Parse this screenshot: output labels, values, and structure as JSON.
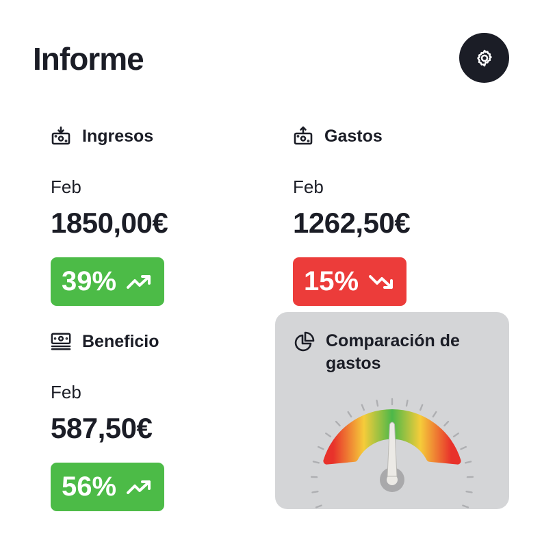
{
  "header": {
    "title": "Informe",
    "settings_icon": "gear-icon"
  },
  "cards": {
    "ingresos": {
      "label": "Ingresos",
      "icon": "money-in-icon",
      "period": "Feb",
      "amount": "1850,00€",
      "change": "39%",
      "trend": "trend-up-icon",
      "color": "#4cbb47"
    },
    "gastos": {
      "label": "Gastos",
      "icon": "money-out-icon",
      "period": "Feb",
      "amount": "1262,50€",
      "change": "15%",
      "trend": "trend-down-icon",
      "color": "#ec3c3a"
    },
    "beneficio": {
      "label": "Beneficio",
      "icon": "banknotes-icon",
      "period": "Feb",
      "amount": "587,50€",
      "change": "56%",
      "trend": "trend-up-icon",
      "color": "#4cbb47"
    }
  },
  "comparison": {
    "label": "Comparación de gastos",
    "icon": "pie-chart-icon",
    "gauge_value": 0.5,
    "colors": {
      "bad": "#e8322b",
      "warn": "#f5cc3a",
      "good": "#4cb849",
      "panel": "#d4d5d7"
    }
  }
}
